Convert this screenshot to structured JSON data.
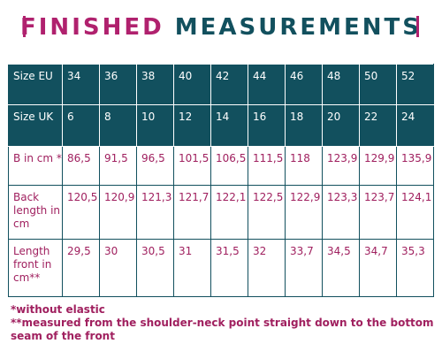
{
  "title": {
    "word1": "FINISHED",
    "word2": "MEASUREMENTS"
  },
  "table": {
    "header_rows": [
      {
        "label": "Size EU",
        "cells": [
          "34",
          "36",
          "38",
          "40",
          "42",
          "44",
          "46",
          "48",
          "50",
          "52"
        ]
      },
      {
        "label": "Size UK",
        "cells": [
          "6",
          "8",
          "10",
          "12",
          "14",
          "16",
          "18",
          "20",
          "22",
          "24"
        ]
      }
    ],
    "data_rows": [
      {
        "label": "B in cm *",
        "cells": [
          "86,5",
          "91,5",
          "96,5",
          "101,5",
          "106,5",
          "111,5",
          "118",
          "123,9",
          "129,9",
          "135,9"
        ]
      },
      {
        "label": "Back length in cm",
        "cells": [
          "120,5",
          "120,9",
          "121,3",
          "121,7",
          "122,1",
          "122,5",
          "122,9",
          "123,3",
          "123,7",
          "124,1"
        ]
      },
      {
        "label": "Length front in cm**",
        "cells": [
          "29,5",
          "30",
          "30,5",
          "31",
          "31,5",
          "32",
          "33,7",
          "34,5",
          "34,7",
          "35,3"
        ]
      }
    ]
  },
  "footnotes": [
    "*without elastic",
    "**measured from the shoulder-neck point straight down to the bottom seam of the front"
  ],
  "colors": {
    "accent": "#b0216e",
    "header_bg": "#12505e",
    "text": "#a0205f"
  }
}
